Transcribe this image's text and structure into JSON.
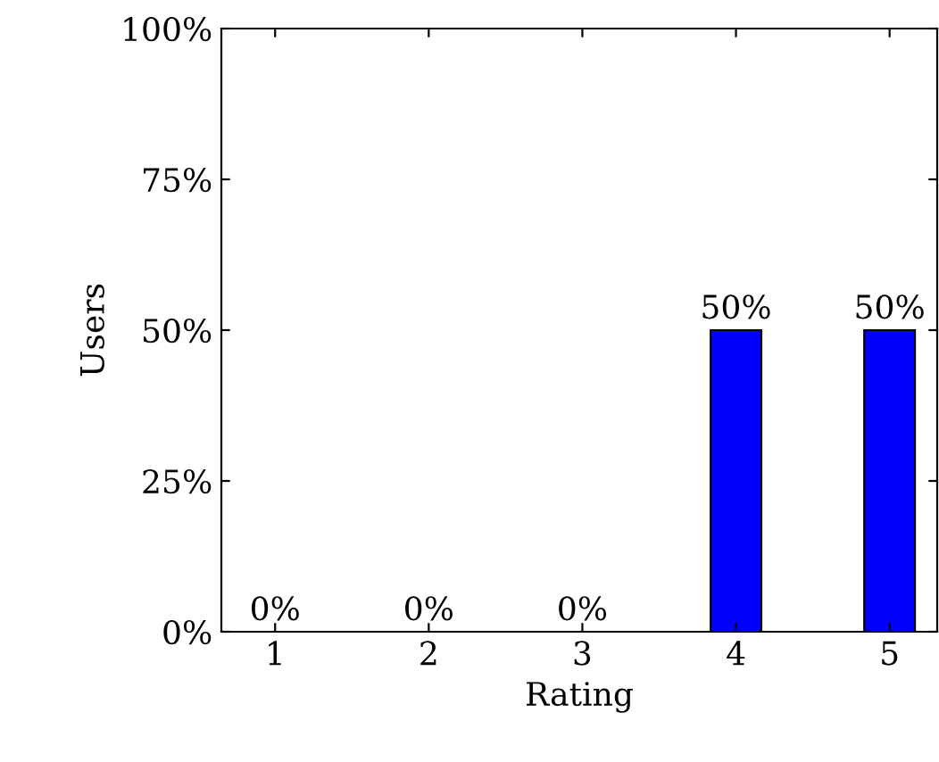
{
  "chart_data": {
    "type": "bar",
    "xlabel": "Rating",
    "ylabel": "Users",
    "categories": [
      "1",
      "2",
      "3",
      "4",
      "5"
    ],
    "values": [
      0,
      0,
      0,
      50,
      50
    ],
    "value_labels": [
      "0%",
      "0%",
      "0%",
      "50%",
      "50%"
    ],
    "color": "#0000ff",
    "ylim": [
      0,
      100
    ],
    "yticks": [
      {
        "value": 0,
        "label": "0%"
      },
      {
        "value": 25,
        "label": "25%"
      },
      {
        "value": 50,
        "label": "50%"
      },
      {
        "value": 75,
        "label": "75%"
      },
      {
        "value": 100,
        "label": "100%"
      }
    ],
    "grid": false,
    "legend": false
  }
}
